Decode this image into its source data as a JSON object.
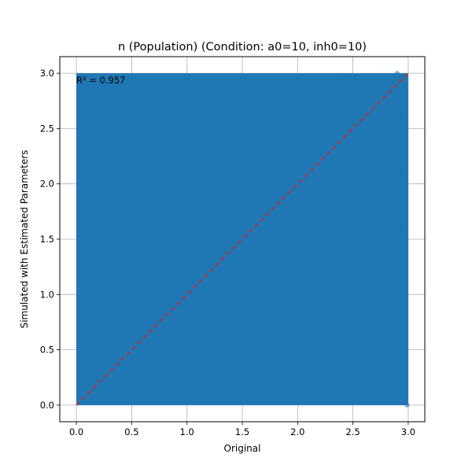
{
  "chart_data": {
    "type": "scatter",
    "title": "n (Population) (Condition: a0=10, inh0=10)",
    "xlabel": "Original",
    "ylabel": "Simulated with Estimated Parameters",
    "xlim": [
      -0.15,
      3.15
    ],
    "ylim": [
      -0.15,
      3.15
    ],
    "xticks": [
      0.0,
      0.5,
      1.0,
      1.5,
      2.0,
      2.5,
      3.0
    ],
    "yticks": [
      0.0,
      0.5,
      1.0,
      1.5,
      2.0,
      2.5,
      3.0
    ],
    "xtick_labels": [
      "0.0",
      "0.5",
      "1.0",
      "1.5",
      "2.0",
      "2.5",
      "3.0"
    ],
    "ytick_labels": [
      "0.0",
      "0.5",
      "1.0",
      "1.5",
      "2.0",
      "2.5",
      "3.0"
    ],
    "grid": true,
    "annotation": "R² = 0.957",
    "reference_line": {
      "x": [
        0,
        3
      ],
      "y": [
        0,
        3
      ],
      "style": "dashed",
      "color": "#d62728"
    },
    "series": [
      {
        "color": "#1f77b4",
        "point_alpha": 0.5,
        "data_extent": {
          "x": [
            0,
            3
          ],
          "y": [
            0,
            3
          ]
        },
        "sample_points": [
          [
            0.05,
            2.95
          ],
          [
            0.1,
            2.9
          ],
          [
            0.2,
            2.95
          ],
          [
            0.3,
            2.9
          ],
          [
            0.5,
            2.8
          ],
          [
            0.8,
            2.85
          ],
          [
            1.2,
            2.9
          ],
          [
            1.8,
            2.95
          ],
          [
            2.4,
            2.98
          ],
          [
            2.9,
            3.0
          ],
          [
            0.2,
            2.3
          ],
          [
            0.35,
            2.6
          ],
          [
            0.5,
            2.3
          ],
          [
            0.8,
            2.4
          ],
          [
            1.0,
            2.6
          ],
          [
            1.3,
            2.5
          ],
          [
            1.7,
            2.6
          ],
          [
            2.1,
            2.7
          ],
          [
            2.5,
            2.8
          ],
          [
            0.25,
            1.7
          ],
          [
            0.4,
            1.9
          ],
          [
            0.6,
            2.0
          ],
          [
            0.9,
            2.1
          ],
          [
            1.3,
            2.2
          ],
          [
            1.6,
            2.4
          ],
          [
            2.0,
            2.5
          ],
          [
            0.1,
            1.2
          ],
          [
            0.3,
            0.8
          ],
          [
            0.5,
            1.5
          ],
          [
            0.8,
            1.1
          ],
          [
            1.0,
            0.5
          ],
          [
            1.2,
            1.6
          ],
          [
            1.5,
            1.0
          ],
          [
            1.8,
            0.4
          ],
          [
            2.0,
            1.8
          ],
          [
            2.2,
            1.2
          ],
          [
            2.4,
            0.7
          ],
          [
            2.6,
            1.6
          ],
          [
            2.8,
            2.2
          ],
          [
            2.95,
            2.6
          ],
          [
            2.3,
            0.3
          ],
          [
            2.5,
            0.5
          ],
          [
            2.7,
            0.9
          ],
          [
            2.8,
            1.4
          ],
          [
            2.9,
            1.8
          ],
          [
            2.95,
            2.1
          ],
          [
            2.4,
            1.3
          ],
          [
            2.6,
            0.2
          ],
          [
            2.75,
            0.6
          ],
          [
            2.9,
            0.95
          ],
          [
            2.95,
            1.6
          ],
          [
            2.85,
            0.15
          ],
          [
            2.99,
            0.0
          ],
          [
            0.02,
            0.05
          ],
          [
            1.5,
            0.05
          ],
          [
            2.5,
            0.05
          ],
          [
            0.02,
            2.0
          ],
          [
            0.02,
            1.0
          ],
          [
            0.02,
            2.8
          ],
          [
            1.1,
            1.9
          ]
        ]
      }
    ]
  }
}
